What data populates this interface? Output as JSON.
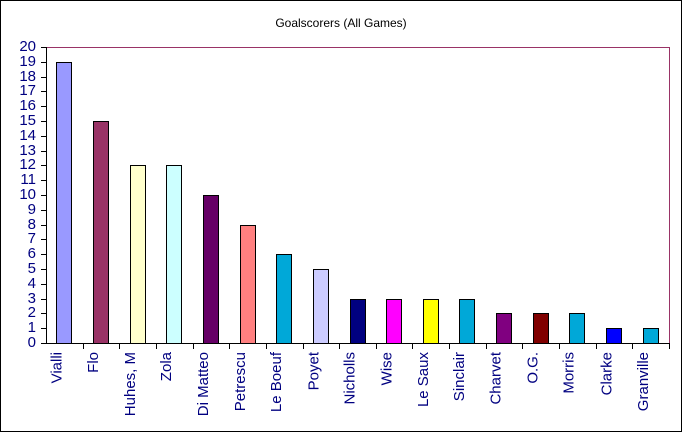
{
  "chart_data": {
    "type": "bar",
    "title": "Goalscorers (All Games)",
    "xlabel": "",
    "ylabel": "",
    "ylim": [
      0,
      20
    ],
    "yticks": [
      0,
      1,
      2,
      3,
      4,
      5,
      6,
      7,
      8,
      9,
      10,
      11,
      12,
      13,
      14,
      15,
      16,
      17,
      18,
      19,
      20
    ],
    "grid": false,
    "legend": "none",
    "categories": [
      "Vialli",
      "Flo",
      "Huhes, M",
      "Zola",
      "Di Matteo",
      "Petrescu",
      "Le Boeuf",
      "Poyet",
      "Nicholls",
      "Wise",
      "Le Saux",
      "Sinclair",
      "Charvet",
      "O.G.",
      "Morris",
      "Clarke",
      "Granville"
    ],
    "values": [
      19,
      15,
      12,
      12,
      10,
      8,
      6,
      5,
      3,
      3,
      3,
      3,
      2,
      2,
      2,
      1,
      1
    ],
    "colors": [
      "#9999ff",
      "#993366",
      "#ffffcc",
      "#ccffff",
      "#660066",
      "#ff8080",
      "#00a8d8",
      "#ccccff",
      "#000080",
      "#ff00ff",
      "#ffff00",
      "#00a8d8",
      "#800080",
      "#800000",
      "#00a8d8",
      "#0000ff",
      "#00a8d8"
    ]
  },
  "colors": {
    "axis_label": "#000080",
    "plot_border": "#993366"
  }
}
